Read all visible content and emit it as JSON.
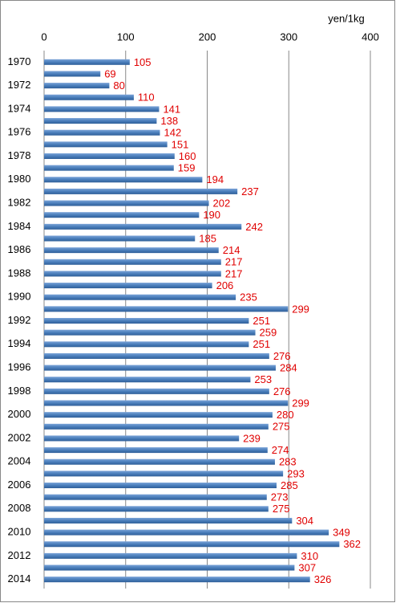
{
  "chart_data": {
    "type": "bar",
    "orientation": "horizontal",
    "x_label": "yen/1kg",
    "categories": [
      "1970",
      null,
      "1972",
      null,
      "1974",
      null,
      "1976",
      null,
      "1978",
      null,
      "1980",
      null,
      "1982",
      null,
      "1984",
      null,
      "1986",
      null,
      "1988",
      null,
      "1990",
      null,
      "1992",
      null,
      "1994",
      null,
      "1996",
      null,
      "1998",
      null,
      "2000",
      null,
      "2002",
      null,
      "2004",
      null,
      "2006",
      null,
      "2008",
      null,
      "2010",
      null,
      "2012",
      null,
      "2014"
    ],
    "values": [
      105,
      69,
      80,
      110,
      141,
      138,
      142,
      151,
      160,
      159,
      194,
      237,
      202,
      190,
      242,
      185,
      214,
      217,
      217,
      206,
      235,
      299,
      251,
      259,
      251,
      276,
      284,
      253,
      276,
      299,
      280,
      275,
      239,
      274,
      283,
      293,
      285,
      273,
      275,
      304,
      349,
      362,
      310,
      307,
      326
    ],
    "color": "#4a7ebb",
    "value_label_color": "#e00000",
    "xlim": [
      0,
      400
    ],
    "xticks": [
      0,
      100,
      200,
      300,
      400
    ],
    "grid": true
  }
}
